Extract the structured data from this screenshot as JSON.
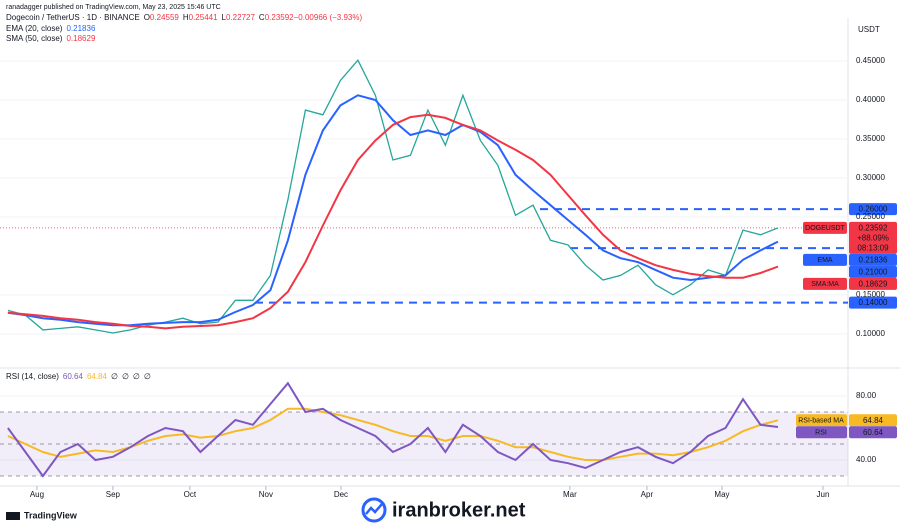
{
  "header": {
    "published": "ranadagger published on TradingView.com, May 23, 2025 15:46 UTC"
  },
  "footer": {
    "brand": "TradingView",
    "watermark": "iranbroker.net"
  },
  "chart_data": [
    {
      "type": "line",
      "title": "Dogecoin / TetherUS · 1D · BINANCE",
      "ohlc": [
        {
          "key": "O",
          "text": "0.24559"
        },
        {
          "key": "H",
          "text": "0.25441"
        },
        {
          "key": "L",
          "text": "0.22727"
        },
        {
          "key": "C",
          "text": "0.23592"
        },
        {
          "key": "",
          "text": "−0.00966 (−3.93%)"
        }
      ],
      "unit": "USDT",
      "xlim": [
        -0.45,
        48
      ],
      "ylim": [
        0.06,
        0.5
      ],
      "yticks": [
        {
          "value": 0.1,
          "label": "0.10000"
        },
        {
          "value": 0.15,
          "label": "0.15000"
        },
        {
          "value": 0.25,
          "label": "0.25000"
        },
        {
          "value": 0.3,
          "label": "0.30000"
        },
        {
          "value": 0.35,
          "label": "0.35000"
        },
        {
          "value": 0.4,
          "label": "0.40000"
        },
        {
          "value": 0.45,
          "label": "0.45000"
        }
      ],
      "grid": true,
      "levels": [
        {
          "value": 0.26,
          "label": "0.26000"
        },
        {
          "value": 0.21,
          "label": "0.21000"
        },
        {
          "value": 0.14,
          "label": "0.14000"
        }
      ],
      "level_color": "#2962ff",
      "series": [
        {
          "name": "DOGEUSDT",
          "color": "#26a69a",
          "tag_color": "#f23645",
          "last_label": "0.23592",
          "extra_labels": [
            "+88.09%",
            "08:13:09"
          ],
          "values": [
            0.13,
            0.124,
            0.105,
            0.107,
            0.109,
            0.105,
            0.101,
            0.105,
            0.111,
            0.115,
            0.12,
            0.113,
            0.115,
            0.143,
            0.143,
            0.175,
            0.272,
            0.387,
            0.381,
            0.425,
            0.451,
            0.406,
            0.323,
            0.329,
            0.387,
            0.342,
            0.406,
            0.348,
            0.316,
            0.252,
            0.265,
            0.22,
            0.214,
            0.188,
            0.169,
            0.175,
            0.188,
            0.163,
            0.15,
            0.163,
            0.182,
            0.175,
            0.233,
            0.227,
            0.23592
          ]
        },
        {
          "name": "EMA (20, close)",
          "tag": "EMA",
          "color": "#2962ff",
          "tag_color": "#2962ff",
          "last_label": "0.21836",
          "values": [
            0.127,
            0.124,
            0.12,
            0.118,
            0.115,
            0.113,
            0.111,
            0.111,
            0.113,
            0.114,
            0.115,
            0.115,
            0.118,
            0.128,
            0.137,
            0.156,
            0.22,
            0.304,
            0.361,
            0.393,
            0.406,
            0.4,
            0.374,
            0.355,
            0.361,
            0.355,
            0.368,
            0.359,
            0.342,
            0.304,
            0.284,
            0.265,
            0.246,
            0.227,
            0.207,
            0.197,
            0.192,
            0.182,
            0.172,
            0.169,
            0.172,
            0.175,
            0.195,
            0.207,
            0.21836
          ]
        },
        {
          "name": "SMA (50, close)",
          "tag": "SMA:MA",
          "color": "#f23645",
          "tag_color": "#f23645",
          "last_label": "0.18629",
          "values": [
            0.127,
            0.125,
            0.123,
            0.12,
            0.118,
            0.115,
            0.113,
            0.11,
            0.109,
            0.107,
            0.109,
            0.11,
            0.111,
            0.115,
            0.12,
            0.133,
            0.154,
            0.192,
            0.239,
            0.284,
            0.323,
            0.348,
            0.368,
            0.378,
            0.381,
            0.377,
            0.368,
            0.361,
            0.348,
            0.336,
            0.323,
            0.304,
            0.278,
            0.252,
            0.227,
            0.207,
            0.197,
            0.188,
            0.182,
            0.177,
            0.174,
            0.172,
            0.172,
            0.178,
            0.18629
          ]
        }
      ]
    },
    {
      "type": "line",
      "title": "RSI (14, close)",
      "legend_values": [
        "60.64",
        "64.84",
        "∅",
        "∅",
        "∅",
        "∅"
      ],
      "xlim": [
        -0.45,
        48
      ],
      "xticks": [
        {
          "value": 1.66,
          "label": "Aug"
        },
        {
          "value": 6.0,
          "label": "Sep"
        },
        {
          "value": 10.4,
          "label": "Oct"
        },
        {
          "value": 14.74,
          "label": "Nov"
        },
        {
          "value": 19.03,
          "label": "Dec"
        },
        {
          "value": 32.11,
          "label": "Mar"
        },
        {
          "value": 36.51,
          "label": "Apr"
        },
        {
          "value": 40.8,
          "label": "May"
        },
        {
          "value": 46.57,
          "label": "Jun"
        }
      ],
      "ylim": [
        25,
        95
      ],
      "yticks": [
        {
          "value": 40,
          "label": "40.00"
        },
        {
          "value": 80,
          "label": "80.00"
        }
      ],
      "levels": [
        30,
        50,
        70
      ],
      "series": [
        {
          "name": "RSI-based MA",
          "color": "#f7b924",
          "last_label": "64.84",
          "values": [
            55,
            50,
            45,
            42,
            44,
            46,
            45,
            48,
            52,
            55,
            56,
            54,
            55,
            58,
            60,
            65,
            72,
            72,
            70,
            68,
            65,
            62,
            58,
            55,
            55,
            52,
            55,
            55,
            52,
            48,
            48,
            45,
            42,
            40,
            40,
            42,
            44,
            44,
            43,
            45,
            48,
            52,
            58,
            62,
            64.84
          ]
        },
        {
          "name": "RSI",
          "color": "#7e57c2",
          "last_label": "60.64",
          "values": [
            60,
            45,
            30,
            45,
            50,
            40,
            42,
            48,
            55,
            60,
            58,
            45,
            55,
            65,
            62,
            75,
            88,
            70,
            72,
            65,
            60,
            55,
            45,
            50,
            60,
            45,
            62,
            55,
            45,
            40,
            50,
            40,
            38,
            35,
            40,
            45,
            48,
            42,
            38,
            45,
            55,
            60,
            78,
            62,
            60.64
          ]
        }
      ]
    }
  ]
}
